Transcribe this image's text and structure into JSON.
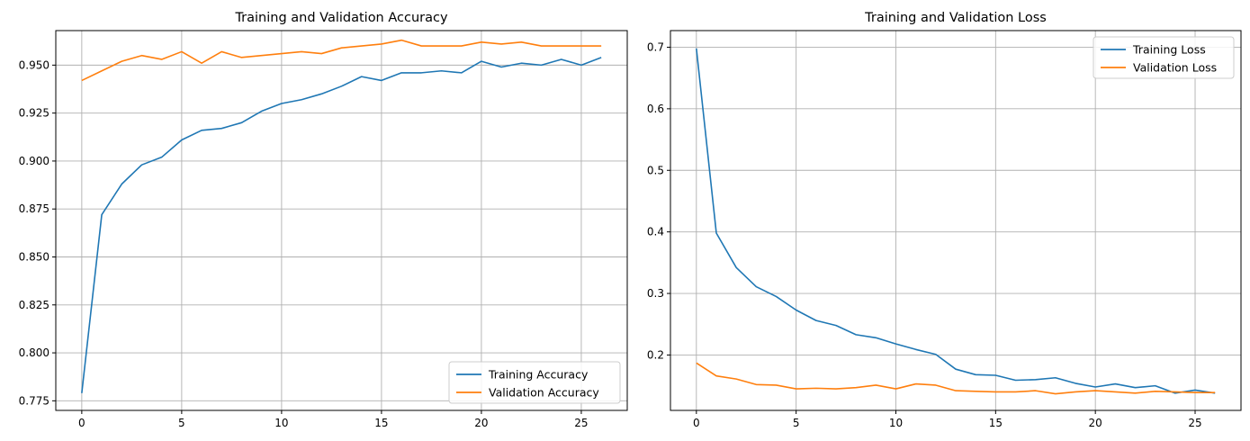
{
  "chart_data": [
    {
      "type": "line",
      "title": "Training and Validation Accuracy",
      "xlabel": "",
      "ylabel": "",
      "xlim": [
        -1.3,
        27.3
      ],
      "ylim": [
        0.77,
        0.968
      ],
      "xticks": [
        0,
        5,
        10,
        15,
        20,
        25
      ],
      "yticks": [
        0.775,
        0.8,
        0.825,
        0.85,
        0.875,
        0.9,
        0.925,
        0.95
      ],
      "ytick_labels": [
        "0.775",
        "0.800",
        "0.825",
        "0.850",
        "0.875",
        "0.900",
        "0.925",
        "0.950"
      ],
      "grid": true,
      "legend_position": "lower-right",
      "x": [
        0,
        1,
        2,
        3,
        4,
        5,
        6,
        7,
        8,
        9,
        10,
        11,
        12,
        13,
        14,
        15,
        16,
        17,
        18,
        19,
        20,
        21,
        22,
        23,
        24,
        25,
        26
      ],
      "series": [
        {
          "name": "Training Accuracy",
          "color": "#1f77b4",
          "values": [
            0.779,
            0.872,
            0.888,
            0.898,
            0.902,
            0.911,
            0.916,
            0.917,
            0.92,
            0.926,
            0.93,
            0.932,
            0.935,
            0.939,
            0.944,
            0.942,
            0.946,
            0.946,
            0.947,
            0.946,
            0.952,
            0.949,
            0.951,
            0.95,
            0.953,
            0.95,
            0.954
          ]
        },
        {
          "name": "Validation Accuracy",
          "color": "#ff7f0e",
          "values": [
            0.942,
            0.947,
            0.952,
            0.955,
            0.953,
            0.957,
            0.951,
            0.957,
            0.954,
            0.955,
            0.956,
            0.957,
            0.956,
            0.959,
            0.96,
            0.961,
            0.963,
            0.96,
            0.96,
            0.96,
            0.962,
            0.961,
            0.962,
            0.96,
            0.96,
            0.96,
            0.96
          ]
        }
      ]
    },
    {
      "type": "line",
      "title": "Training and Validation Loss",
      "xlabel": "",
      "ylabel": "",
      "xlim": [
        -1.3,
        27.3
      ],
      "ylim": [
        0.11,
        0.727
      ],
      "xticks": [
        0,
        5,
        10,
        15,
        20,
        25
      ],
      "yticks": [
        0.2,
        0.3,
        0.4,
        0.5,
        0.6,
        0.7
      ],
      "ytick_labels": [
        "0.2",
        "0.3",
        "0.4",
        "0.5",
        "0.6",
        "0.7"
      ],
      "grid": true,
      "legend_position": "upper-right",
      "x": [
        0,
        1,
        2,
        3,
        4,
        5,
        6,
        7,
        8,
        9,
        10,
        11,
        12,
        13,
        14,
        15,
        16,
        17,
        18,
        19,
        20,
        21,
        22,
        23,
        24,
        25,
        26
      ],
      "series": [
        {
          "name": "Training Loss",
          "color": "#1f77b4",
          "values": [
            0.698,
            0.398,
            0.342,
            0.311,
            0.295,
            0.273,
            0.256,
            0.248,
            0.233,
            0.228,
            0.218,
            0.209,
            0.201,
            0.177,
            0.168,
            0.167,
            0.159,
            0.16,
            0.163,
            0.154,
            0.148,
            0.153,
            0.147,
            0.15,
            0.138,
            0.143,
            0.138
          ]
        },
        {
          "name": "Validation Loss",
          "color": "#ff7f0e",
          "values": [
            0.187,
            0.166,
            0.161,
            0.152,
            0.151,
            0.145,
            0.146,
            0.145,
            0.147,
            0.151,
            0.145,
            0.153,
            0.151,
            0.142,
            0.141,
            0.14,
            0.14,
            0.142,
            0.137,
            0.14,
            0.142,
            0.14,
            0.138,
            0.141,
            0.14,
            0.139,
            0.139
          ]
        }
      ]
    }
  ]
}
